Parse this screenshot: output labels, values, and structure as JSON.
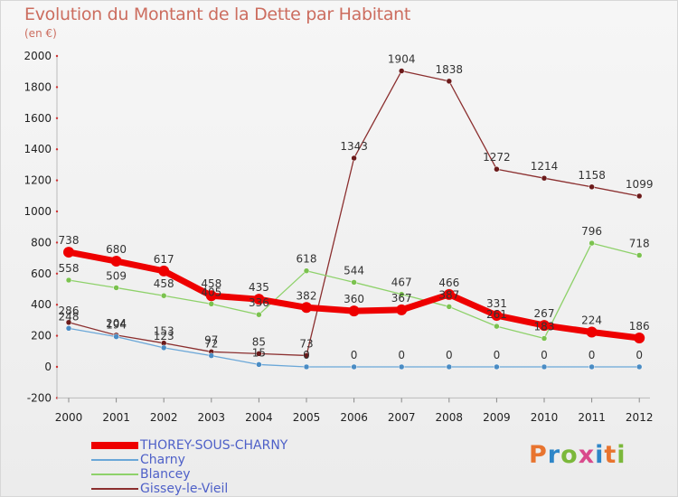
{
  "header": {
    "title": "Evolution du Montant de la Dette par Habitant",
    "subtitle": "(en €)"
  },
  "logo": {
    "text": "Proxiti",
    "colors": [
      "#e8742f",
      "#2e86c8",
      "#7bb83a",
      "#d94a8c",
      "#2e86c8",
      "#e8742f",
      "#7bb83a"
    ]
  },
  "chart_data": {
    "type": "line",
    "title": "Evolution du Montant de la Dette par Habitant",
    "subtitle": "(en €)",
    "xlabel": "",
    "ylabel": "",
    "x": [
      2000,
      2001,
      2002,
      2003,
      2004,
      2005,
      2006,
      2007,
      2008,
      2009,
      2010,
      2011,
      2012
    ],
    "x_tick_labels": [
      "2000",
      "2001",
      "2002",
      "2003",
      "2004",
      "2005",
      "2006",
      "2007",
      "2008",
      "2009",
      "2010",
      "2011",
      "2012"
    ],
    "ylim": [
      -200,
      2000
    ],
    "y_ticks": [
      -200,
      0,
      200,
      400,
      600,
      800,
      1000,
      1200,
      1400,
      1600,
      1800,
      2000
    ],
    "grid": false,
    "legend_position": "bottom-left",
    "series": [
      {
        "name": "Gissey-le-Vieil",
        "color": "#8b2f2f",
        "point_color": "#6b1a1a",
        "values": [
          286,
          204,
          153,
          97,
          85,
          73,
          1343,
          1904,
          1838,
          1272,
          1214,
          1158,
          1099
        ],
        "labels": [
          "286",
          "204",
          "153",
          "97",
          "85",
          "73",
          "1343",
          "1904",
          "1838",
          "1272",
          "1214",
          "1158",
          "1099"
        ]
      },
      {
        "name": "Blancey",
        "color": "#8ed16a",
        "point_color": "#7bc24f",
        "values": [
          558,
          509,
          458,
          405,
          336,
          618,
          544,
          467,
          387,
          261,
          183,
          796,
          718
        ],
        "labels": [
          "558",
          "509",
          "458",
          "405",
          "336",
          "618",
          "544",
          "467",
          "387",
          "261",
          "183",
          "796",
          "718"
        ]
      },
      {
        "name": "Charny",
        "color": "#6aa7d8",
        "point_color": "#4a8cc4",
        "values": [
          248,
          194,
          123,
          72,
          15,
          0,
          0,
          0,
          0,
          0,
          0,
          0,
          0
        ],
        "labels": [
          "248",
          "194",
          "123",
          "72",
          "15",
          "0",
          "0",
          "0",
          "0",
          "0",
          "0",
          "0",
          "0"
        ]
      },
      {
        "name": "THOREY-SOUS-CHARNY",
        "color": "#ee0000",
        "point_color": "#ee0000",
        "values": [
          738,
          680,
          617,
          458,
          435,
          382,
          360,
          367,
          466,
          331,
          267,
          224,
          186
        ],
        "labels": [
          "738",
          "680",
          "617",
          "458",
          "435",
          "382",
          "360",
          "367",
          "466",
          "331",
          "267",
          "224",
          "186"
        ]
      }
    ],
    "legend": [
      {
        "name": "THOREY-SOUS-CHARNY",
        "color": "#ee0000"
      },
      {
        "name": "Charny",
        "color": "#6aa7d8"
      },
      {
        "name": "Blancey",
        "color": "#8ed16a"
      },
      {
        "name": "Gissey-le-Vieil",
        "color": "#8b2f2f"
      }
    ]
  }
}
